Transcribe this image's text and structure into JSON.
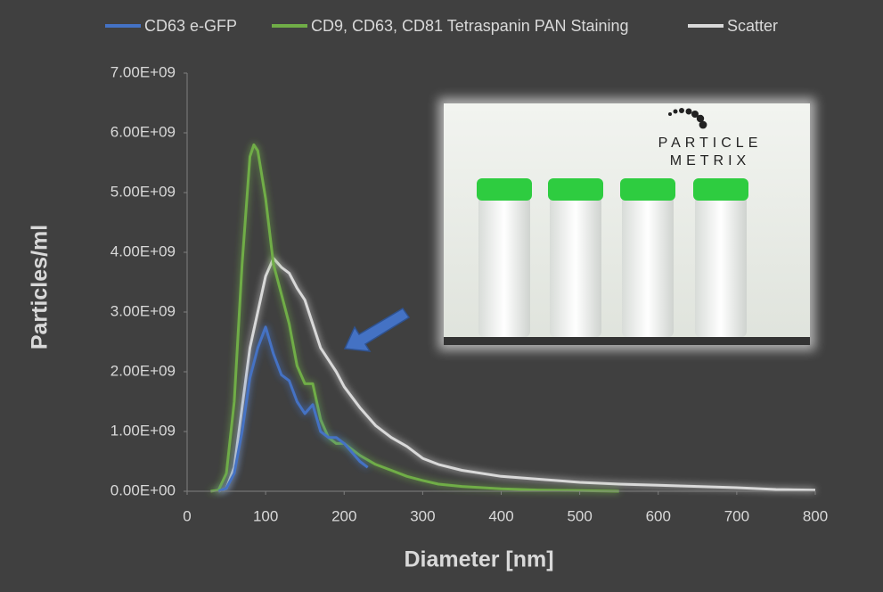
{
  "chart_data": {
    "type": "line",
    "x_label": "Diameter [nm]",
    "y_label": "Particles/ml",
    "annotations": [
      "PARTICLE",
      "METRIX"
    ],
    "xlim": [
      0,
      800
    ],
    "xticks": [
      0,
      100,
      200,
      300,
      400,
      500,
      600,
      700,
      800
    ],
    "ylim": [
      0,
      7000000000.0
    ],
    "yticks": [
      {
        "value": 0,
        "label": "0.00E+00"
      },
      {
        "value": 1000000000.0,
        "label": "1.00E+09"
      },
      {
        "value": 2000000000.0,
        "label": "2.00E+09"
      },
      {
        "value": 3000000000.0,
        "label": "3.00E+09"
      },
      {
        "value": 4000000000.0,
        "label": "4.00E+09"
      },
      {
        "value": 5000000000.0,
        "label": "5.00E+09"
      },
      {
        "value": 6000000000.0,
        "label": "6.00E+09"
      },
      {
        "value": 7000000000.0,
        "label": "7.00E+09"
      }
    ],
    "legend": "top",
    "series": [
      {
        "name": "CD63 e-GFP",
        "color": "#4472c4",
        "x": [
          40,
          50,
          60,
          70,
          80,
          90,
          100,
          110,
          120,
          130,
          140,
          150,
          160,
          170,
          180,
          190,
          200,
          210,
          220,
          230
        ],
        "values": [
          0,
          50000000.0,
          300000000.0,
          1000000000.0,
          1900000000.0,
          2400000000.0,
          2750000000.0,
          2300000000.0,
          1950000000.0,
          1850000000.0,
          1500000000.0,
          1300000000.0,
          1450000000.0,
          1000000000.0,
          900000000.0,
          900000000.0,
          800000000.0,
          650000000.0,
          500000000.0,
          400000000.0
        ]
      },
      {
        "name": "CD9, CD63, CD81 Tetraspanin PAN Staining",
        "color": "#70ad47",
        "x": [
          30,
          40,
          50,
          60,
          70,
          80,
          85,
          90,
          100,
          110,
          120,
          130,
          140,
          150,
          160,
          170,
          180,
          190,
          200,
          220,
          240,
          260,
          280,
          300,
          320,
          350,
          400,
          450,
          500,
          550
        ],
        "values": [
          0,
          20000000.0,
          300000000.0,
          1500000000.0,
          3800000000.0,
          5600000000.0,
          5800000000.0,
          5700000000.0,
          4900000000.0,
          3800000000.0,
          3300000000.0,
          2800000000.0,
          2100000000.0,
          1800000000.0,
          1800000000.0,
          1200000000.0,
          900000000.0,
          800000000.0,
          800000000.0,
          600000000.0,
          450000000.0,
          350000000.0,
          250000000.0,
          180000000.0,
          120000000.0,
          80000000.0,
          40000000.0,
          20000000.0,
          10000000.0,
          0
        ]
      },
      {
        "name": "Scatter",
        "color": "#d9d9d9",
        "x": [
          40,
          50,
          60,
          70,
          80,
          90,
          100,
          110,
          120,
          130,
          140,
          150,
          160,
          170,
          180,
          190,
          200,
          220,
          240,
          260,
          280,
          300,
          320,
          350,
          400,
          450,
          500,
          550,
          600,
          650,
          700,
          750,
          800
        ],
        "values": [
          0,
          50000000.0,
          400000000.0,
          1400000000.0,
          2400000000.0,
          3000000000.0,
          3600000000.0,
          3900000000.0,
          3750000000.0,
          3650000000.0,
          3400000000.0,
          3200000000.0,
          2800000000.0,
          2400000000.0,
          2200000000.0,
          2000000000.0,
          1750000000.0,
          1400000000.0,
          1100000000.0,
          900000000.0,
          750000000.0,
          550000000.0,
          450000000.0,
          350000000.0,
          250000000.0,
          200000000.0,
          150000000.0,
          120000000.0,
          100000000.0,
          80000000.0,
          60000000.0,
          30000000.0,
          20000000.0
        ]
      }
    ]
  }
}
